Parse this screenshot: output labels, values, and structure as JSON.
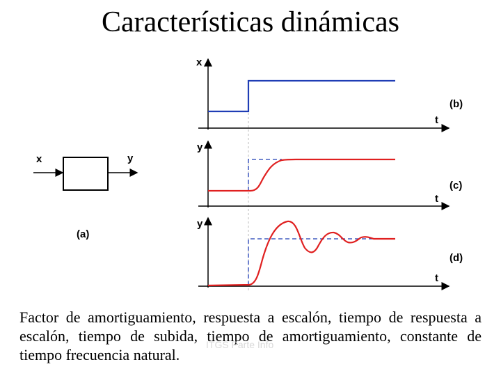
{
  "title": "Características dinámicas",
  "block": {
    "input_label": "x",
    "output_label": "y",
    "tag": "(a)"
  },
  "panels": [
    {
      "tag": "(b)",
      "y_label": "x",
      "x_label": "t"
    },
    {
      "tag": "(c)",
      "y_label": "y",
      "x_label": "t"
    },
    {
      "tag": "(d)",
      "y_label": "y",
      "x_label": "t"
    }
  ],
  "caption": "Factor de amortiguamiento, respuesta a escalón, tiempo de respuesta a escalón, tiempo de subida, tiempo de amortiguamiento, constante de tiempo frecuencia natural.",
  "watermark": "ITGS Parte Info",
  "colors": {
    "input_signal": "#1f3db5",
    "response": "#e02020",
    "reference": "#1f3db5",
    "axes": "#000000",
    "guide": "#bbbbbb"
  }
}
